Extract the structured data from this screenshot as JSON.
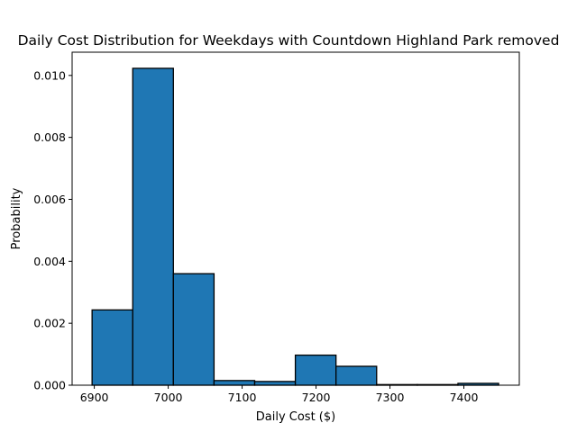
{
  "chart_data": {
    "type": "bar",
    "title": "Daily Cost Distribution for Weekdays with Countdown Highland Park removed",
    "xlabel": "Daily Cost ($)",
    "ylabel": "Probability",
    "xlim": [
      6870,
      7475
    ],
    "ylim": [
      0,
      0.01075
    ],
    "bar_color": "#1f77b4",
    "edge_color": "#000000",
    "grid": false,
    "x_ticks": [
      6900,
      7000,
      7100,
      7200,
      7300,
      7400
    ],
    "x_tick_labels": [
      "6900",
      "7000",
      "7100",
      "7200",
      "7300",
      "7400"
    ],
    "y_ticks": [
      0,
      0.002,
      0.004,
      0.006,
      0.008,
      0.01
    ],
    "y_tick_labels": [
      "0.000",
      "0.002",
      "0.004",
      "0.006",
      "0.008",
      "0.010"
    ],
    "bins": [
      {
        "x0": 6897,
        "x1": 6952,
        "value": 0.00243
      },
      {
        "x0": 6952,
        "x1": 7007,
        "value": 0.01023
      },
      {
        "x0": 7007,
        "x1": 7062,
        "value": 0.0036
      },
      {
        "x0": 7062,
        "x1": 7117,
        "value": 0.00015
      },
      {
        "x0": 7117,
        "x1": 7172,
        "value": 0.00012
      },
      {
        "x0": 7172,
        "x1": 7227,
        "value": 0.00097
      },
      {
        "x0": 7227,
        "x1": 7282,
        "value": 0.00061
      },
      {
        "x0": 7282,
        "x1": 7337,
        "value": 2e-05
      },
      {
        "x0": 7337,
        "x1": 7392,
        "value": 2e-05
      },
      {
        "x0": 7392,
        "x1": 7447,
        "value": 6e-05
      }
    ]
  }
}
